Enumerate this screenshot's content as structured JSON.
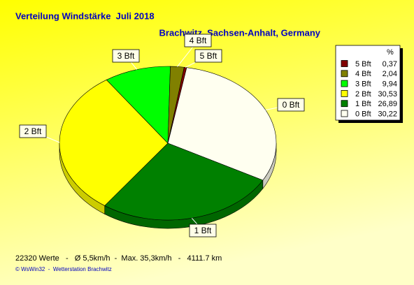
{
  "chart_data": {
    "type": "pie",
    "title": "Verteilung Windstärke  Juli 2018",
    "subtitle": "Brachwitz, Sachsen-Anhalt, Germany",
    "legend_header": "%",
    "legend": "right",
    "series": [
      {
        "name": "5 Bft",
        "color": "#800000",
        "values": [
          0.37
        ],
        "value_labels": [
          "0,37"
        ]
      },
      {
        "name": "4 Bft",
        "color": "#808000",
        "values": [
          2.04
        ],
        "value_labels": [
          "2,04"
        ]
      },
      {
        "name": "3 Bft",
        "color": "#00ff00",
        "values": [
          9.94
        ],
        "value_labels": [
          "9,94"
        ]
      },
      {
        "name": "2 Bft",
        "color": "#ffff00",
        "values": [
          30.53
        ],
        "value_labels": [
          "30,53"
        ]
      },
      {
        "name": "1 Bft",
        "color": "#008000",
        "values": [
          26.89
        ],
        "value_labels": [
          "26,89"
        ]
      },
      {
        "name": "0 Bft",
        "color": "#fffff0",
        "values": [
          30.22
        ],
        "value_labels": [
          "30,22"
        ]
      }
    ],
    "note": "22320 Werte   -   Ø 5,5km/h  -  Max. 35,3km/h   -   4111.7 km",
    "source": "© WsWin32  -  Wetterstation Brachwitz"
  }
}
